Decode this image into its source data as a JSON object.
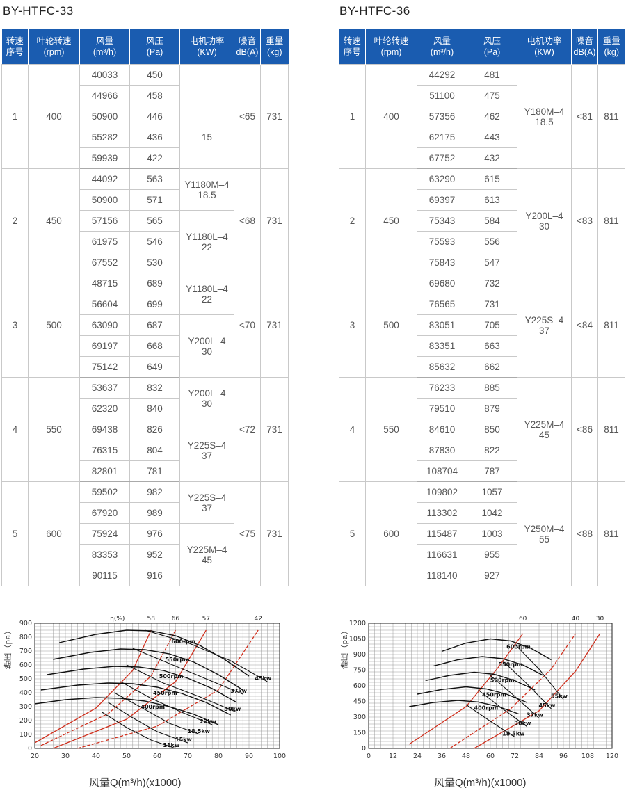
{
  "left": {
    "title": "BY-HTFC-33",
    "headers": [
      [
        "转速",
        "序号"
      ],
      [
        "叶轮转速",
        "(rpm)"
      ],
      [
        "风量",
        "(m³/h)"
      ],
      [
        "风压",
        "(Pa)"
      ],
      [
        "电机功率",
        "(KW)"
      ],
      [
        "噪音",
        "dB(A)"
      ],
      [
        "重量",
        "(kg)"
      ]
    ],
    "groups": [
      {
        "no": "1",
        "rpm": "400",
        "noise": "<65",
        "weight": "731",
        "rows": [
          [
            "40033",
            "450"
          ],
          [
            "44966",
            "458"
          ],
          [
            "50900",
            "446"
          ],
          [
            "55282",
            "436"
          ],
          [
            "59939",
            "422"
          ]
        ],
        "motors": [
          {
            "span": 2,
            "lines": []
          },
          {
            "span": 3,
            "lines": [
              "15"
            ]
          }
        ]
      },
      {
        "no": "2",
        "rpm": "450",
        "noise": "<68",
        "weight": "731",
        "rows": [
          [
            "44092",
            "563"
          ],
          [
            "50900",
            "571"
          ],
          [
            "57156",
            "565"
          ],
          [
            "61975",
            "546"
          ],
          [
            "67552",
            "530"
          ]
        ],
        "motors": [
          {
            "span": 2,
            "lines": [
              "Y1180M–4",
              "18.5"
            ]
          },
          {
            "span": 3,
            "lines": [
              "Y1180L–4",
              "22"
            ]
          }
        ]
      },
      {
        "no": "3",
        "rpm": "500",
        "noise": "<70",
        "weight": "731",
        "rows": [
          [
            "48715",
            "689"
          ],
          [
            "56604",
            "699"
          ],
          [
            "63090",
            "687"
          ],
          [
            "69197",
            "668"
          ],
          [
            "75142",
            "649"
          ]
        ],
        "motors": [
          {
            "span": 2,
            "lines": [
              "Y1180L–4",
              "22"
            ]
          },
          {
            "span": 3,
            "lines": [
              "Y200L–4",
              "30"
            ]
          }
        ]
      },
      {
        "no": "4",
        "rpm": "550",
        "noise": "<72",
        "weight": "731",
        "rows": [
          [
            "53637",
            "832"
          ],
          [
            "62320",
            "840"
          ],
          [
            "69438",
            "826"
          ],
          [
            "76315",
            "804"
          ],
          [
            "82801",
            "781"
          ]
        ],
        "motors": [
          {
            "span": 2,
            "lines": [
              "Y200L–4",
              "30"
            ]
          },
          {
            "span": 3,
            "lines": [
              "Y225S–4",
              "37"
            ]
          }
        ]
      },
      {
        "no": "5",
        "rpm": "600",
        "noise": "<75",
        "weight": "731",
        "rows": [
          [
            "59502",
            "982"
          ],
          [
            "67920",
            "989"
          ],
          [
            "75924",
            "976"
          ],
          [
            "83353",
            "952"
          ],
          [
            "90115",
            "916"
          ]
        ],
        "motors": [
          {
            "span": 2,
            "lines": [
              "Y225S–4",
              "37"
            ]
          },
          {
            "span": 3,
            "lines": [
              "Y225M–4",
              "45"
            ]
          }
        ]
      }
    ]
  },
  "right": {
    "title": "BY-HTFC-36",
    "headers": [
      [
        "转速",
        "序号"
      ],
      [
        "叶轮转速",
        "(rpm)"
      ],
      [
        "风量",
        "(m³/h)"
      ],
      [
        "风压",
        "(Pa)"
      ],
      [
        "电机功率",
        "(KW)"
      ],
      [
        "噪音",
        "dB(A)"
      ],
      [
        "重量",
        "(kg)"
      ]
    ],
    "groups": [
      {
        "no": "1",
        "rpm": "400",
        "noise": "<81",
        "weight": "811",
        "rows": [
          [
            "44292",
            "481"
          ],
          [
            "51100",
            "475"
          ],
          [
            "57356",
            "462"
          ],
          [
            "62175",
            "443"
          ],
          [
            "67752",
            "432"
          ]
        ],
        "motors": [
          {
            "span": 5,
            "lines": [
              "Y180M–4",
              "18.5"
            ]
          }
        ]
      },
      {
        "no": "2",
        "rpm": "450",
        "noise": "<83",
        "weight": "811",
        "rows": [
          [
            "63290",
            "615"
          ],
          [
            "69397",
            "613"
          ],
          [
            "75343",
            "584"
          ],
          [
            "75593",
            "556"
          ],
          [
            "75843",
            "547"
          ]
        ],
        "motors": [
          {
            "span": 5,
            "lines": [
              "Y200L–4",
              "30"
            ]
          }
        ]
      },
      {
        "no": "3",
        "rpm": "500",
        "noise": "<84",
        "weight": "811",
        "rows": [
          [
            "69680",
            "732"
          ],
          [
            "76565",
            "731"
          ],
          [
            "83051",
            "705"
          ],
          [
            "83351",
            "663"
          ],
          [
            "85632",
            "662"
          ]
        ],
        "motors": [
          {
            "span": 5,
            "lines": [
              "Y225S–4",
              "37"
            ]
          }
        ]
      },
      {
        "no": "4",
        "rpm": "550",
        "noise": "<86",
        "weight": "811",
        "rows": [
          [
            "76233",
            "885"
          ],
          [
            "79510",
            "879"
          ],
          [
            "84610",
            "850"
          ],
          [
            "87830",
            "822"
          ],
          [
            "108704",
            "787"
          ]
        ],
        "motors": [
          {
            "span": 5,
            "lines": [
              "Y225M–4",
              "45"
            ]
          }
        ]
      },
      {
        "no": "5",
        "rpm": "600",
        "noise": "<88",
        "weight": "811",
        "rows": [
          [
            "109802",
            "1057"
          ],
          [
            "113302",
            "1042"
          ],
          [
            "115487",
            "1003"
          ],
          [
            "116631",
            "955"
          ],
          [
            "118140",
            "927"
          ]
        ],
        "motors": [
          {
            "span": 5,
            "lines": [
              "Y250M–4",
              "55"
            ]
          }
        ]
      }
    ]
  },
  "chart_data": [
    {
      "type": "line",
      "ylabel": "静压（pa）",
      "xlabel": "风量Q(m³/h)(x1000)",
      "x_ticks": [
        "20",
        "30",
        "40",
        "50",
        "60",
        "70",
        "80",
        "90",
        "100"
      ],
      "y_ticks": [
        "0",
        "100",
        "200",
        "300",
        "400",
        "500",
        "600",
        "700",
        "800",
        "900"
      ],
      "xlim": [
        20,
        100
      ],
      "ylim": [
        0,
        900
      ],
      "eta_label": "η(%)",
      "eta_values": [
        "58",
        "66",
        "57",
        "42"
      ],
      "rpm_labels": [
        "600rpm",
        "550rpm",
        "500rpm",
        "450rpm",
        "400rpm"
      ],
      "power_labels": [
        "45kw",
        "37kw",
        "30kw",
        "22kw",
        "18.5kw",
        "15kw",
        "11kw"
      ],
      "curves_rpm": [
        {
          "name": "600rpm",
          "x": [
            28,
            40,
            50,
            58,
            66,
            74,
            82,
            90
          ],
          "y": [
            760,
            820,
            850,
            845,
            810,
            740,
            640,
            520
          ]
        },
        {
          "name": "550rpm",
          "x": [
            26,
            38,
            48,
            56,
            64,
            72,
            80,
            88
          ],
          "y": [
            640,
            690,
            715,
            710,
            680,
            620,
            530,
            420
          ]
        },
        {
          "name": "500rpm",
          "x": [
            24,
            36,
            46,
            54,
            62,
            70,
            78,
            86
          ],
          "y": [
            530,
            570,
            590,
            585,
            560,
            505,
            430,
            330
          ]
        },
        {
          "name": "450rpm",
          "x": [
            22,
            34,
            44,
            52,
            60,
            68,
            76,
            84
          ],
          "y": [
            420,
            455,
            470,
            465,
            440,
            395,
            330,
            240
          ]
        },
        {
          "name": "400rpm",
          "x": [
            20,
            30,
            40,
            48,
            56,
            64,
            72,
            80
          ],
          "y": [
            320,
            350,
            365,
            360,
            340,
            300,
            245,
            170
          ]
        }
      ],
      "curves_power": [
        {
          "name": "45kw",
          "x": [
            56,
            70,
            84,
            96
          ],
          "y": [
            850,
            760,
            630,
            480
          ]
        },
        {
          "name": "37kw",
          "x": [
            52,
            64,
            76,
            88
          ],
          "y": [
            720,
            610,
            500,
            390
          ]
        },
        {
          "name": "30kw",
          "x": [
            50,
            62,
            74,
            86
          ],
          "y": [
            600,
            470,
            370,
            260
          ]
        },
        {
          "name": "22kw",
          "x": [
            48,
            58,
            68,
            78
          ],
          "y": [
            480,
            360,
            260,
            170
          ]
        },
        {
          "name": "18.5kw",
          "x": [
            46,
            56,
            64,
            74
          ],
          "y": [
            400,
            280,
            180,
            100
          ]
        },
        {
          "name": "15kw",
          "x": [
            44,
            52,
            60,
            70
          ],
          "y": [
            330,
            220,
            120,
            40
          ]
        },
        {
          "name": "11kw",
          "x": [
            42,
            50,
            58,
            66
          ],
          "y": [
            260,
            150,
            60,
            0
          ]
        }
      ],
      "curves_eta": [
        {
          "name": "58",
          "x": [
            20,
            40,
            52,
            58
          ],
          "y": [
            40,
            290,
            560,
            850
          ]
        },
        {
          "name": "66",
          "x": [
            22,
            44,
            58,
            66
          ],
          "y": [
            20,
            250,
            520,
            850
          ]
        },
        {
          "name": "57",
          "x": [
            26,
            50,
            66,
            76
          ],
          "y": [
            0,
            210,
            480,
            850
          ]
        },
        {
          "name": "42",
          "x": [
            34,
            60,
            80,
            93
          ],
          "y": [
            0,
            160,
            420,
            850
          ]
        }
      ]
    },
    {
      "type": "line",
      "ylabel": "静压（pa）",
      "xlabel": "风量Q(m³/h)(x1000)",
      "x_ticks": [
        "0",
        "12",
        "24",
        "36",
        "48",
        "60",
        "72",
        "84",
        "96",
        "108",
        "120"
      ],
      "y_ticks": [
        "0",
        "150",
        "300",
        "450",
        "600",
        "750",
        "900",
        "1050",
        "1200"
      ],
      "xlim": [
        0,
        120
      ],
      "ylim": [
        0,
        1200
      ],
      "eta_values": [
        "60",
        "40",
        "30"
      ],
      "rpm_labels": [
        "600rpm",
        "550rpm",
        "500rpm",
        "450rpm",
        "400rpm"
      ],
      "power_labels": [
        "55kw",
        "45kw",
        "37kw",
        "30kw",
        "18.5kw"
      ],
      "curves_rpm": [
        {
          "name": "600rpm",
          "x": [
            36,
            48,
            60,
            70,
            80,
            90
          ],
          "y": [
            930,
            1010,
            1050,
            1030,
            960,
            850
          ]
        },
        {
          "name": "550rpm",
          "x": [
            32,
            44,
            56,
            66,
            76,
            86
          ],
          "y": [
            790,
            850,
            880,
            860,
            800,
            700
          ]
        },
        {
          "name": "500rpm",
          "x": [
            28,
            40,
            52,
            62,
            72,
            82
          ],
          "y": [
            650,
            700,
            730,
            710,
            650,
            560
          ]
        },
        {
          "name": "450rpm",
          "x": [
            24,
            36,
            48,
            58,
            68,
            78
          ],
          "y": [
            520,
            565,
            590,
            570,
            520,
            440
          ]
        },
        {
          "name": "400rpm",
          "x": [
            20,
            32,
            44,
            54,
            64,
            74
          ],
          "y": [
            400,
            440,
            460,
            445,
            400,
            330
          ]
        }
      ],
      "curves_power": [
        {
          "name": "55kw",
          "x": [
            72,
            84,
            96
          ],
          "y": [
            1000,
            760,
            470
          ]
        },
        {
          "name": "45kw",
          "x": [
            66,
            78,
            90
          ],
          "y": [
            840,
            620,
            380
          ]
        },
        {
          "name": "37kw",
          "x": [
            60,
            72,
            84
          ],
          "y": [
            700,
            500,
            290
          ]
        },
        {
          "name": "30kw",
          "x": [
            54,
            66,
            78
          ],
          "y": [
            560,
            380,
            210
          ]
        },
        {
          "name": "18.5kw",
          "x": [
            48,
            60,
            72
          ],
          "y": [
            420,
            260,
            110
          ]
        }
      ],
      "curves_eta": [
        {
          "name": "60",
          "x": [
            20,
            48,
            64,
            76
          ],
          "y": [
            40,
            400,
            780,
            1100
          ]
        },
        {
          "name": "40",
          "x": [
            40,
            70,
            90,
            102
          ],
          "y": [
            0,
            380,
            760,
            1100
          ]
        },
        {
          "name": "30",
          "x": [
            52,
            84,
            102,
            114
          ],
          "y": [
            0,
            360,
            740,
            1100
          ]
        }
      ]
    }
  ]
}
